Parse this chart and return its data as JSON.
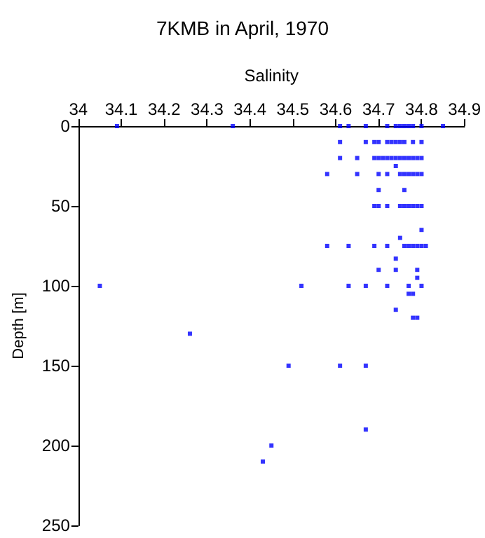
{
  "chart_data": {
    "type": "scatter",
    "title": "7KMB in April, 1970",
    "xlabel": "Salinity",
    "ylabel": "Depth [m]",
    "x": [
      34.09,
      34.36,
      34.61,
      34.63,
      34.67,
      34.72,
      34.74,
      34.75,
      34.76,
      34.77,
      34.78,
      34.8,
      34.85,
      34.61,
      34.67,
      34.69,
      34.7,
      34.72,
      34.73,
      34.74,
      34.75,
      34.76,
      34.78,
      34.8,
      34.61,
      34.65,
      34.69,
      34.7,
      34.71,
      34.72,
      34.73,
      34.74,
      34.75,
      34.76,
      34.77,
      34.78,
      34.79,
      34.8,
      34.74,
      34.58,
      34.65,
      34.7,
      34.72,
      34.75,
      34.76,
      34.77,
      34.78,
      34.79,
      34.8,
      34.7,
      34.76,
      34.69,
      34.7,
      34.72,
      34.75,
      34.76,
      34.77,
      34.78,
      34.79,
      34.8,
      34.8,
      34.75,
      34.58,
      34.63,
      34.69,
      34.72,
      34.76,
      34.77,
      34.78,
      34.79,
      34.8,
      34.81,
      34.74,
      34.7,
      34.74,
      34.79,
      34.79,
      34.05,
      34.52,
      34.63,
      34.67,
      34.72,
      34.77,
      34.8,
      34.77,
      34.78,
      34.74,
      34.78,
      34.79,
      34.26,
      34.49,
      34.61,
      34.67,
      34.67,
      34.45,
      34.43
    ],
    "values": [
      0,
      0,
      0,
      0,
      0,
      0,
      0,
      0,
      0,
      0,
      0,
      0,
      0,
      10,
      10,
      10,
      10,
      10,
      10,
      10,
      10,
      10,
      10,
      10,
      20,
      20,
      20,
      20,
      20,
      20,
      20,
      20,
      20,
      20,
      20,
      20,
      20,
      20,
      25,
      30,
      30,
      30,
      30,
      30,
      30,
      30,
      30,
      30,
      30,
      40,
      40,
      50,
      50,
      50,
      50,
      50,
      50,
      50,
      50,
      50,
      65,
      70,
      75,
      75,
      75,
      75,
      75,
      75,
      75,
      75,
      75,
      75,
      83,
      90,
      90,
      90,
      95,
      100,
      100,
      100,
      100,
      100,
      100,
      100,
      105,
      105,
      115,
      120,
      120,
      130,
      150,
      150,
      150,
      190,
      200,
      210
    ],
    "color": "#0000ff",
    "marker": "square",
    "xlim": [
      34,
      34.9
    ],
    "xticks": [
      34,
      34.1,
      34.2,
      34.3,
      34.4,
      34.5,
      34.6,
      34.7,
      34.8,
      34.9
    ],
    "ylim": [
      250,
      0
    ],
    "yticks": [
      0,
      50,
      100,
      150,
      200,
      250
    ],
    "grid": false
  }
}
